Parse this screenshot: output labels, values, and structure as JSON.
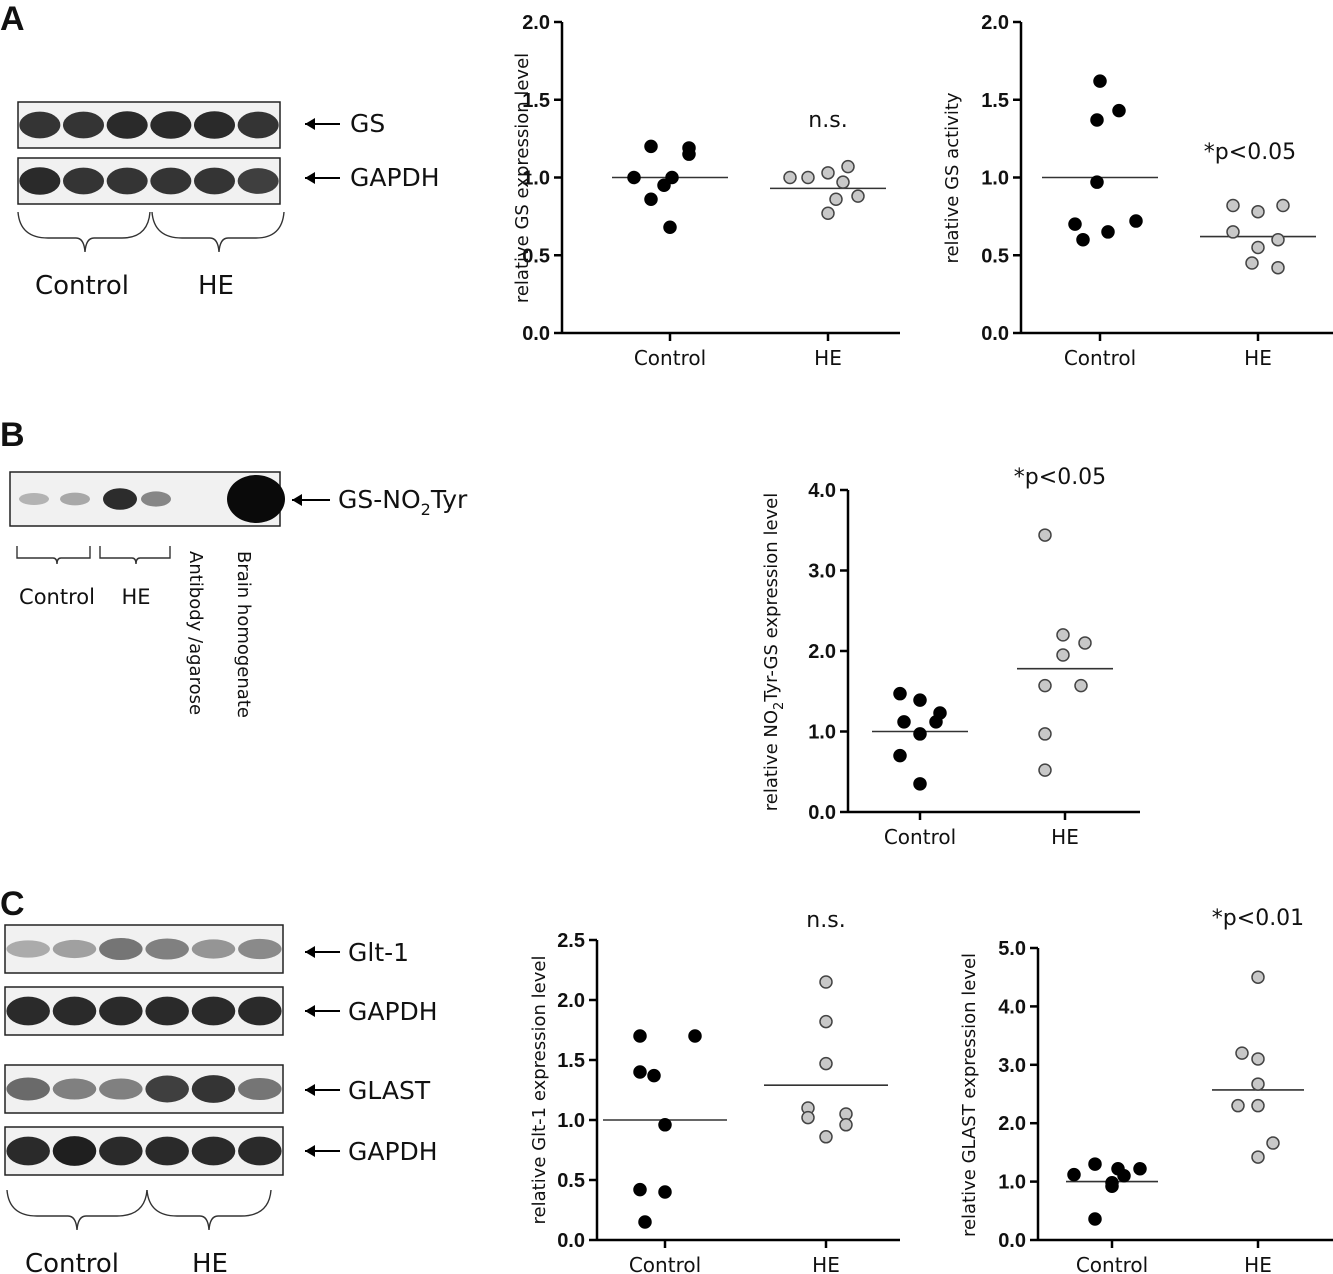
{
  "panels": {
    "A": {
      "letter": "A",
      "blot": {
        "bands": [
          {
            "label": "GS",
            "lanes": [
              0.85,
              0.85,
              0.9,
              0.9,
              0.9,
              0.85
            ]
          },
          {
            "label": "GAPDH",
            "lanes": [
              0.9,
              0.85,
              0.85,
              0.85,
              0.85,
              0.8
            ]
          }
        ],
        "groups": [
          "Control",
          "HE"
        ]
      }
    },
    "B": {
      "letter": "B",
      "blot": {
        "band_label_main": "GS-NO",
        "band_label_sub": "2",
        "band_label_end": "Tyr",
        "lanes": [
          0.25,
          0.3,
          0.85,
          0.45,
          0.0,
          1.0
        ],
        "groups": [
          "Control",
          "HE"
        ],
        "rotated_labels": [
          "Antibody /agarose",
          "Brain homogenate"
        ]
      }
    },
    "C": {
      "letter": "C",
      "blot": {
        "bands": [
          {
            "label": "Glt-1",
            "lanes": [
              0.3,
              0.35,
              0.55,
              0.5,
              0.4,
              0.45
            ]
          },
          {
            "label": "GAPDH",
            "lanes": [
              0.9,
              0.9,
              0.9,
              0.9,
              0.9,
              0.9
            ]
          },
          {
            "label": "GLAST",
            "lanes": [
              0.6,
              0.5,
              0.5,
              0.8,
              0.85,
              0.55
            ]
          },
          {
            "label": "GAPDH",
            "lanes": [
              0.9,
              0.95,
              0.9,
              0.9,
              0.9,
              0.9
            ]
          }
        ],
        "groups": [
          "Control",
          "HE"
        ]
      }
    }
  },
  "chart_data": [
    {
      "type": "scatter",
      "panel": "A",
      "ylabel": "relative GS expression level",
      "categories": [
        "Control",
        "HE"
      ],
      "ylim": [
        0.0,
        2.0
      ],
      "yticks": [
        "0.0",
        "0.5",
        "1.0",
        "1.5",
        "2.0"
      ],
      "annotation": "n.s.",
      "series": [
        {
          "values": [
            1.2,
            1.0,
            0.95,
            1.15,
            0.86,
            1.0,
            0.68,
            1.19
          ],
          "mean": 1.0
        },
        {
          "values": [
            1.0,
            1.0,
            1.03,
            0.86,
            0.97,
            0.88,
            0.77,
            1.07
          ],
          "mean": 0.93
        }
      ]
    },
    {
      "type": "scatter",
      "panel": "A",
      "ylabel": "relative GS activity",
      "categories": [
        "Control",
        "HE"
      ],
      "ylim": [
        0.0,
        2.0
      ],
      "yticks": [
        "0.0",
        "0.5",
        "1.0",
        "1.5",
        "2.0"
      ],
      "annotation": "*p<0.05",
      "series": [
        {
          "values": [
            1.62,
            1.37,
            1.43,
            0.97,
            0.7,
            0.6,
            0.65,
            0.72
          ],
          "mean": 1.0
        },
        {
          "values": [
            0.82,
            0.78,
            0.82,
            0.65,
            0.55,
            0.6,
            0.45,
            0.42
          ],
          "mean": 0.62
        }
      ]
    },
    {
      "type": "scatter",
      "panel": "B",
      "ylabel_main": "relative NO",
      "ylabel_sub": "2",
      "ylabel_end": "Tyr-GS expression level",
      "categories": [
        "Control",
        "HE"
      ],
      "ylim": [
        0.0,
        4.0
      ],
      "yticks": [
        "0.0",
        "1.0",
        "2.0",
        "3.0",
        "4.0"
      ],
      "annotation": "*p<0.05",
      "series": [
        {
          "values": [
            1.47,
            1.39,
            1.23,
            1.12,
            1.12,
            0.97,
            0.7,
            0.35
          ],
          "mean": 1.0
        },
        {
          "values": [
            3.44,
            2.2,
            2.1,
            1.95,
            1.57,
            1.57,
            0.97,
            0.52
          ],
          "mean": 1.78
        }
      ]
    },
    {
      "type": "scatter",
      "panel": "C",
      "ylabel": "relative Glt-1 expression level",
      "categories": [
        "Control",
        "HE"
      ],
      "ylim": [
        0.0,
        2.5
      ],
      "yticks": [
        "0.0",
        "0.5",
        "1.0",
        "1.5",
        "2.0",
        "2.5"
      ],
      "annotation": "n.s.",
      "series": [
        {
          "values": [
            1.7,
            1.7,
            1.4,
            1.37,
            0.96,
            0.42,
            0.4,
            0.15
          ],
          "mean": 1.0
        },
        {
          "values": [
            2.15,
            1.82,
            1.47,
            1.1,
            1.05,
            1.02,
            0.96,
            0.86
          ],
          "mean": 1.29
        }
      ]
    },
    {
      "type": "scatter",
      "panel": "C",
      "ylabel": "relative GLAST expression level",
      "categories": [
        "Control",
        "HE"
      ],
      "ylim": [
        0.0,
        5.0
      ],
      "yticks": [
        "0.0",
        "1.0",
        "2.0",
        "3.0",
        "4.0",
        "5.0"
      ],
      "annotation": "*p<0.01",
      "series": [
        {
          "values": [
            1.3,
            1.22,
            1.22,
            1.12,
            1.1,
            0.98,
            0.92,
            0.36
          ],
          "mean": 1.0
        },
        {
          "values": [
            4.5,
            3.2,
            3.1,
            2.67,
            2.3,
            2.3,
            1.66,
            1.42
          ],
          "mean": 2.57
        }
      ]
    }
  ]
}
